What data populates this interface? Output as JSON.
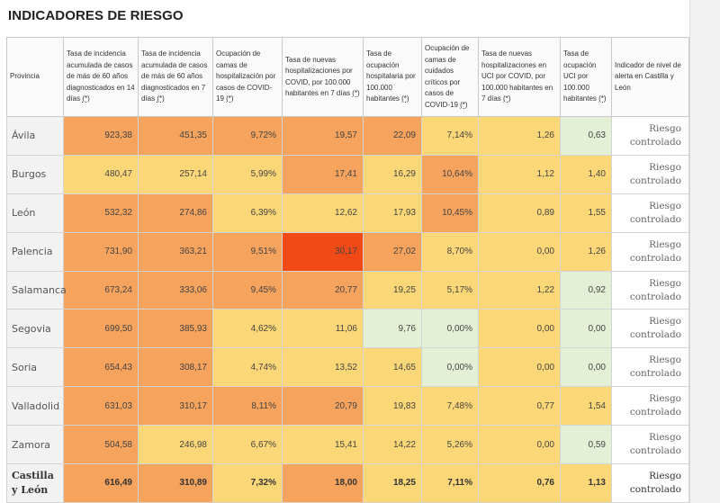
{
  "title": "INDICADORES DE RIESGO",
  "colors": {
    "orange": "#f5a35d",
    "yellow": "#fcd777",
    "green": "#e3f0d6",
    "red": "#f24a16"
  },
  "table": {
    "headers": [
      {
        "text": "Provincia",
        "ast": ""
      },
      {
        "text": "Tasa de incidencia acumulada de casos de más de 60 años diagnosticados en 14 días ",
        "ast": "(*)"
      },
      {
        "text": "Tasa de incidencia acumulada de casos de más de 60 años diagnosticados en 7 días ",
        "ast": "(*)"
      },
      {
        "text": "Ocupación de camas de hospitalización por casos de COVID-19 ",
        "ast": "(*)"
      },
      {
        "text": "Tasa de nuevas hospitalizaciones por COVID, por 100.000 habitantes en 7 días ",
        "ast": "(*)"
      },
      {
        "text": "Tasa de ocupación hospitalaria por 100.000 habitantes ",
        "ast": "(*)"
      },
      {
        "text": "Ocupación de camas de cuidados críticos por casos de COVID-19 ",
        "ast": "(*)"
      },
      {
        "text": "Tasa de nuevas hospitalizaciones en UCI por COVID, por 100.000 habitantes en 7 días ",
        "ast": "(*)"
      },
      {
        "text": "Tasa de ocupación UCI por 100.000 habitantes ",
        "ast": "(*)"
      },
      {
        "text": "Indicador de nivel de alerta en Castilla y León",
        "ast": ""
      }
    ],
    "rows": [
      {
        "prov": "Ávila",
        "alert": [
          "Riesgo",
          "controlado"
        ],
        "cells": [
          {
            "v": "923,38",
            "c": "orange"
          },
          {
            "v": "451,35",
            "c": "orange"
          },
          {
            "v": "9,72%",
            "c": "orange"
          },
          {
            "v": "19,57",
            "c": "orange"
          },
          {
            "v": "22,09",
            "c": "orange"
          },
          {
            "v": "7,14%",
            "c": "yellow"
          },
          {
            "v": "1,26",
            "c": "yellow"
          },
          {
            "v": "0,63",
            "c": "green"
          }
        ]
      },
      {
        "prov": "Burgos",
        "alert": [
          "Riesgo",
          "controlado"
        ],
        "cells": [
          {
            "v": "480,47",
            "c": "yellow"
          },
          {
            "v": "257,14",
            "c": "yellow"
          },
          {
            "v": "5,99%",
            "c": "yellow"
          },
          {
            "v": "17,41",
            "c": "orange"
          },
          {
            "v": "16,29",
            "c": "yellow"
          },
          {
            "v": "10,64%",
            "c": "orange"
          },
          {
            "v": "1,12",
            "c": "yellow"
          },
          {
            "v": "1,40",
            "c": "yellow"
          }
        ]
      },
      {
        "prov": "León",
        "alert": [
          "Riesgo",
          "controlado"
        ],
        "cells": [
          {
            "v": "532,32",
            "c": "orange"
          },
          {
            "v": "274,86",
            "c": "orange"
          },
          {
            "v": "6,39%",
            "c": "yellow"
          },
          {
            "v": "12,62",
            "c": "yellow"
          },
          {
            "v": "17,93",
            "c": "yellow"
          },
          {
            "v": "10,45%",
            "c": "orange"
          },
          {
            "v": "0,89",
            "c": "yellow"
          },
          {
            "v": "1,55",
            "c": "yellow"
          }
        ]
      },
      {
        "prov": "Palencia",
        "alert": [
          "Riesgo",
          "controlado"
        ],
        "cells": [
          {
            "v": "731,90",
            "c": "orange"
          },
          {
            "v": "363,21",
            "c": "orange"
          },
          {
            "v": "9,51%",
            "c": "orange"
          },
          {
            "v": "30,17",
            "c": "red"
          },
          {
            "v": "27,02",
            "c": "orange"
          },
          {
            "v": "8,70%",
            "c": "yellow"
          },
          {
            "v": "0,00",
            "c": "yellow"
          },
          {
            "v": "1,26",
            "c": "yellow"
          }
        ]
      },
      {
        "prov": "Salamanca",
        "alert": [
          "Riesgo",
          "controlado"
        ],
        "cells": [
          {
            "v": "673,24",
            "c": "orange"
          },
          {
            "v": "333,06",
            "c": "orange"
          },
          {
            "v": "9,45%",
            "c": "orange"
          },
          {
            "v": "20,77",
            "c": "orange"
          },
          {
            "v": "19,25",
            "c": "yellow"
          },
          {
            "v": "5,17%",
            "c": "yellow"
          },
          {
            "v": "1,22",
            "c": "yellow"
          },
          {
            "v": "0,92",
            "c": "green"
          }
        ]
      },
      {
        "prov": "Segovia",
        "alert": [
          "Riesgo",
          "controlado"
        ],
        "cells": [
          {
            "v": "699,50",
            "c": "orange"
          },
          {
            "v": "385,93",
            "c": "orange"
          },
          {
            "v": "4,62%",
            "c": "yellow"
          },
          {
            "v": "11,06",
            "c": "yellow"
          },
          {
            "v": "9,76",
            "c": "green"
          },
          {
            "v": "0,00%",
            "c": "green"
          },
          {
            "v": "0,00",
            "c": "yellow"
          },
          {
            "v": "0,00",
            "c": "green"
          }
        ]
      },
      {
        "prov": "Soria",
        "alert": [
          "Riesgo",
          "controlado"
        ],
        "cells": [
          {
            "v": "654,43",
            "c": "orange"
          },
          {
            "v": "308,17",
            "c": "orange"
          },
          {
            "v": "4,74%",
            "c": "yellow"
          },
          {
            "v": "13,52",
            "c": "yellow"
          },
          {
            "v": "14,65",
            "c": "yellow"
          },
          {
            "v": "0,00%",
            "c": "green"
          },
          {
            "v": "0,00",
            "c": "yellow"
          },
          {
            "v": "0,00",
            "c": "green"
          }
        ]
      },
      {
        "prov": "Valladolid",
        "alert": [
          "Riesgo",
          "controlado"
        ],
        "cells": [
          {
            "v": "631,03",
            "c": "orange"
          },
          {
            "v": "310,17",
            "c": "orange"
          },
          {
            "v": "8,11%",
            "c": "orange"
          },
          {
            "v": "20,79",
            "c": "orange"
          },
          {
            "v": "19,83",
            "c": "yellow"
          },
          {
            "v": "7,48%",
            "c": "yellow"
          },
          {
            "v": "0,77",
            "c": "yellow"
          },
          {
            "v": "1,54",
            "c": "yellow"
          }
        ]
      },
      {
        "prov": "Zamora",
        "alert": [
          "Riesgo",
          "controlado"
        ],
        "cells": [
          {
            "v": "504,58",
            "c": "orange"
          },
          {
            "v": "246,98",
            "c": "yellow"
          },
          {
            "v": "6,67%",
            "c": "yellow"
          },
          {
            "v": "15,41",
            "c": "yellow"
          },
          {
            "v": "14,22",
            "c": "yellow"
          },
          {
            "v": "5,26%",
            "c": "yellow"
          },
          {
            "v": "0,00",
            "c": "yellow"
          },
          {
            "v": "0,59",
            "c": "green"
          }
        ]
      },
      {
        "prov": "Castilla y León",
        "alert": [
          "Riesgo",
          "controlado"
        ],
        "total": true,
        "cells": [
          {
            "v": "616,49",
            "c": "orange"
          },
          {
            "v": "310,89",
            "c": "orange"
          },
          {
            "v": "7,32%",
            "c": "yellow"
          },
          {
            "v": "18,00",
            "c": "orange"
          },
          {
            "v": "18,25",
            "c": "yellow"
          },
          {
            "v": "7,11%",
            "c": "yellow"
          },
          {
            "v": "0,76",
            "c": "yellow"
          },
          {
            "v": "1,13",
            "c": "yellow"
          }
        ]
      }
    ]
  }
}
